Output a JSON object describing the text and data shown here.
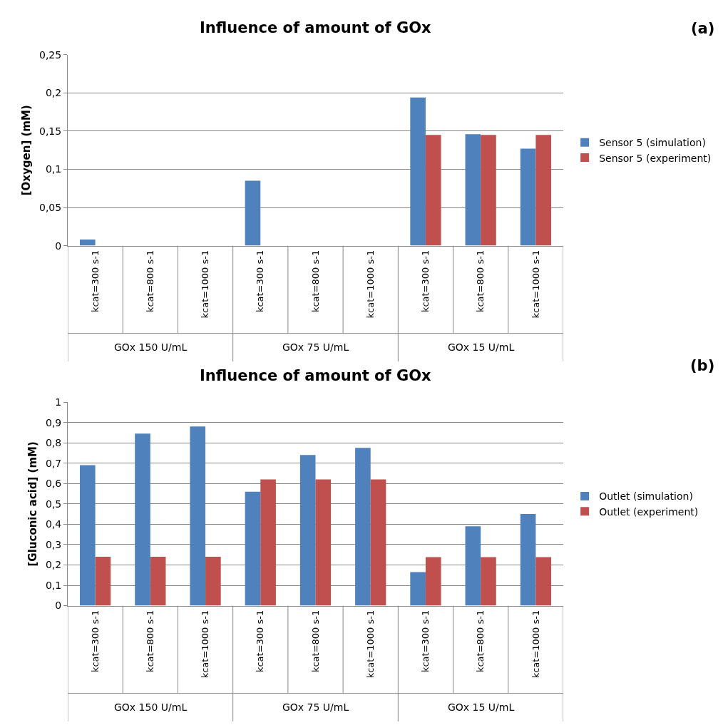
{
  "chart_data": [
    {
      "type": "bar",
      "title": "Influence of amount of GOx",
      "ylabel": "[Oxygen] (mM)",
      "annotations": [
        "(a)",
        "GOx 150 U/mL",
        "GOx 75 U/mL",
        "GOx 15 U/mL"
      ],
      "categories": [
        "kcat=300 s-1",
        "kcat=800 s-1",
        "kcat=1000 s-1",
        "kcat=300 s-1",
        "kcat=800 s-1",
        "kcat=1000 s-1",
        "kcat=300 s-1",
        "kcat=800 s-1",
        "kcat=1000 s-1"
      ],
      "series": [
        {
          "name": "Sensor 5 (simulation)",
          "color": "#4f81bd",
          "values": [
            0.008,
            0,
            0,
            0.085,
            0,
            0,
            0.194,
            0.146,
            0.127
          ]
        },
        {
          "name": "Sensor 5 (experiment)",
          "color": "#c0504d",
          "values": [
            null,
            null,
            null,
            null,
            null,
            null,
            0.145,
            0.145,
            0.145
          ]
        }
      ],
      "ylim": [
        0,
        0.25
      ],
      "yticks": [
        0,
        {
          "value": 0.05,
          "label": "0,05"
        },
        {
          "value": 0.1,
          "label": "0,1"
        },
        {
          "value": 0.15,
          "label": "0,15"
        },
        {
          "value": 0.2,
          "label": "0,2"
        },
        {
          "value": 0.25,
          "label": "0,25"
        }
      ],
      "grid": "y",
      "legend": "right"
    },
    {
      "type": "bar",
      "title": "Influence of amount of GOx",
      "ylabel": "[Gluconic acid] (mM)",
      "annotations": [
        "(b)",
        "GOx 150 U/mL",
        "GOx 75 U/mL",
        "GOx 15 U/mL"
      ],
      "categories": [
        "kcat=300 s-1",
        "kcat=800 s-1",
        "kcat=1000 s-1",
        "kcat=300 s-1",
        "kcat=800 s-1",
        "kcat=1000 s-1",
        "kcat=300 s-1",
        "kcat=800 s-1",
        "kcat=1000 s-1"
      ],
      "series": [
        {
          "name": "Outlet (simulation)",
          "color": "#4f81bd",
          "values": [
            0.69,
            0.845,
            0.88,
            0.56,
            0.74,
            0.775,
            0.165,
            0.39,
            0.45
          ]
        },
        {
          "name": "Outlet (experiment)",
          "color": "#c0504d",
          "values": [
            0.24,
            0.24,
            0.24,
            0.62,
            0.62,
            0.62,
            0.238,
            0.238,
            0.238
          ]
        }
      ],
      "ylim": [
        0,
        1
      ],
      "yticks": [
        0,
        {
          "value": 0.1,
          "label": "0,1"
        },
        {
          "value": 0.2,
          "label": "0,2"
        },
        {
          "value": 0.3,
          "label": "0,3"
        },
        {
          "value": 0.4,
          "label": "0,4"
        },
        {
          "value": 0.5,
          "label": "0,5"
        },
        {
          "value": 0.6,
          "label": "0,6"
        },
        {
          "value": 0.7,
          "label": "0,7"
        },
        {
          "value": 0.8,
          "label": "0,8"
        },
        {
          "value": 0.9,
          "label": "0,9"
        },
        1
      ],
      "grid": "y",
      "legend": "right"
    }
  ]
}
